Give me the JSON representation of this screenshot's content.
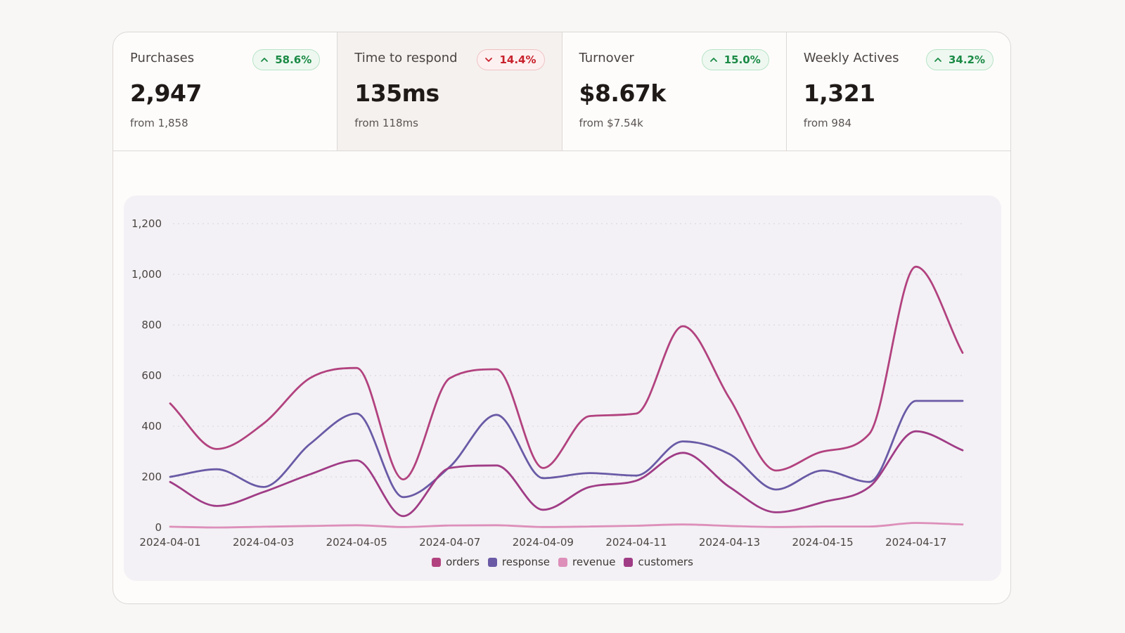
{
  "kpis": [
    {
      "label": "Purchases",
      "value": "2,947",
      "from": "from 1,858",
      "change": "58.6%",
      "direction": "up",
      "icon": "chevron-up-icon"
    },
    {
      "label": "Time to respond",
      "value": "135ms",
      "from": "from 118ms",
      "change": "14.4%",
      "direction": "down",
      "icon": "chevron-down-icon"
    },
    {
      "label": "Turnover",
      "value": "$8.67k",
      "from": "from $7.54k",
      "change": "15.0%",
      "direction": "up",
      "icon": "chevron-up-icon"
    },
    {
      "label": "Weekly Actives",
      "value": "1,321",
      "from": "from 984",
      "change": "34.2%",
      "direction": "up",
      "icon": "chevron-up-icon"
    }
  ],
  "active_kpi": 1,
  "chart_data": {
    "type": "line",
    "x": [
      "2024-04-01",
      "2024-04-02",
      "2024-04-03",
      "2024-04-04",
      "2024-04-05",
      "2024-04-06",
      "2024-04-07",
      "2024-04-08",
      "2024-04-09",
      "2024-04-10",
      "2024-04-11",
      "2024-04-12",
      "2024-04-13",
      "2024-04-14",
      "2024-04-15",
      "2024-04-16",
      "2024-04-17",
      "2024-04-18"
    ],
    "x_tick_labels": [
      "2024-04-01",
      "2024-04-03",
      "2024-04-05",
      "2024-04-07",
      "2024-04-09",
      "2024-04-11",
      "2024-04-13",
      "2024-04-15",
      "2024-04-17"
    ],
    "y_ticks": [
      "0",
      "200",
      "400",
      "600",
      "800",
      "1,000",
      "1,200"
    ],
    "ylim": [
      0,
      1200
    ],
    "grid": true,
    "legend_position": "bottom",
    "series": [
      {
        "name": "orders",
        "color": "#b2427f",
        "values": [
          490,
          310,
          410,
          590,
          630,
          190,
          590,
          625,
          235,
          440,
          450,
          795,
          510,
          225,
          300,
          370,
          1030,
          690
        ]
      },
      {
        "name": "response",
        "color": "#6a5aa6",
        "values": [
          200,
          230,
          160,
          330,
          450,
          120,
          240,
          445,
          195,
          215,
          205,
          340,
          290,
          150,
          225,
          180,
          500,
          500
        ]
      },
      {
        "name": "revenue",
        "color": "#dd8fba",
        "values": [
          3,
          0,
          3,
          6,
          9,
          2,
          8,
          9,
          2,
          4,
          7,
          12,
          6,
          2,
          4,
          4,
          18,
          12
        ]
      },
      {
        "name": "customers",
        "color": "#a03c86",
        "values": [
          180,
          85,
          140,
          210,
          265,
          45,
          235,
          245,
          70,
          160,
          185,
          295,
          160,
          60,
          100,
          160,
          380,
          305
        ]
      }
    ]
  }
}
